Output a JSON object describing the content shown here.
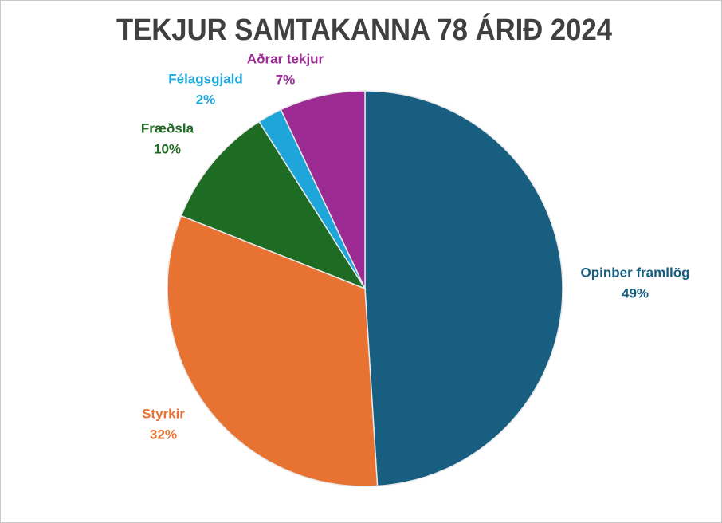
{
  "chart_data": {
    "type": "pie",
    "title": "TEKJUR SAMTAKANNA 78 ÁRIÐ 2024",
    "categories": [
      "Opinber framllög",
      "Styrkir",
      "Fræðsla",
      "Félagsgjald",
      "Aðrar tekjur"
    ],
    "values": [
      49,
      32,
      10,
      2,
      7
    ],
    "value_labels": [
      "49%",
      "32%",
      "10%",
      "2%",
      "7%"
    ],
    "colors": [
      "#175e80",
      "#e87232",
      "#1e6b24",
      "#1ea6db",
      "#9c2b94"
    ]
  }
}
